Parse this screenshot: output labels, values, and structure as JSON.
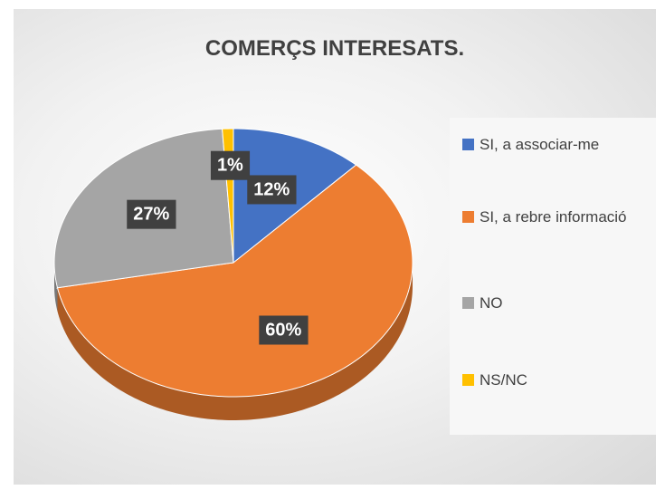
{
  "chart_data": {
    "type": "pie",
    "title": "COMERÇS INTERESATS.",
    "categories": [
      "SI, a associar-me",
      "SI, a rebre informació",
      "NO",
      "NS/NC"
    ],
    "values": [
      12,
      60,
      27,
      1
    ],
    "value_labels": [
      "12%",
      "60%",
      "27%",
      "1%"
    ],
    "colors": [
      "#4472c4",
      "#ed7d31",
      "#a5a5a5",
      "#ffc000"
    ],
    "legend": "right"
  }
}
